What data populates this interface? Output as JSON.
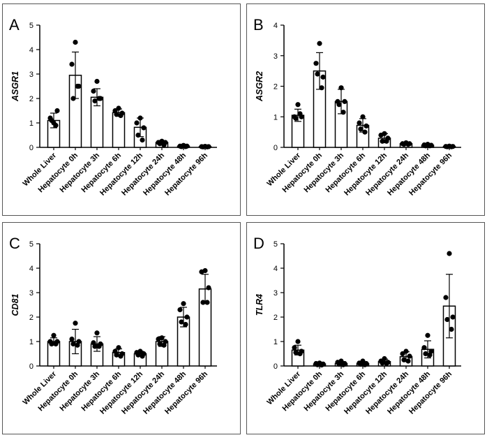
{
  "chart_data": [
    {
      "type": "bar",
      "panel_label": "A",
      "ylabel": "ASGR1",
      "ylim": [
        0,
        5
      ],
      "yticks": [
        0,
        1,
        2,
        3,
        4,
        5
      ],
      "categories": [
        "Whole Liver",
        "Hepatocyte 0h",
        "Hepatocyte 3h",
        "Hepatocyte 6h",
        "Hepatocyte 12h",
        "Hepatocyte 24h",
        "Hepatocyte 48h",
        "Hepatocyte 96h"
      ],
      "values": [
        1.1,
        2.95,
        2.05,
        1.42,
        0.82,
        0.2,
        0.05,
        0.03
      ],
      "sd": [
        0.3,
        0.95,
        0.35,
        0.15,
        0.38,
        0.08,
        0.04,
        0.02
      ],
      "points": [
        [
          1.0,
          1.2,
          1.5,
          1.1,
          0.9
        ],
        [
          4.3,
          3.4,
          2.5,
          2.0,
          2.5
        ],
        [
          2.7,
          2.3,
          2.0,
          1.9,
          2.0
        ],
        [
          1.6,
          1.5,
          1.4,
          1.35,
          1.3
        ],
        [
          1.2,
          1.0,
          0.8,
          0.5,
          0.3
        ],
        [
          0.25,
          0.2,
          0.2,
          0.15,
          0.1
        ],
        [
          0.08,
          0.05,
          0.05,
          0.03,
          0.03
        ],
        [
          0.04,
          0.03,
          0.03,
          0.02,
          0.02
        ]
      ]
    },
    {
      "type": "bar",
      "panel_label": "B",
      "ylabel": "ASGR2",
      "ylim": [
        0,
        4
      ],
      "yticks": [
        0,
        1,
        2,
        3,
        4
      ],
      "categories": [
        "Whole Liver",
        "Hepatocyte 0h",
        "Hepatocyte 3h",
        "Hepatocyte 6h",
        "Hepatocyte 12h",
        "Hepatocyte 24h",
        "Hepatocyte 48h",
        "Hepatocyte 96h"
      ],
      "values": [
        1.05,
        2.5,
        1.5,
        0.72,
        0.3,
        0.12,
        0.07,
        0.03
      ],
      "sd": [
        0.2,
        0.6,
        0.4,
        0.22,
        0.15,
        0.04,
        0.03,
        0.02
      ],
      "points": [
        [
          1.4,
          1.0,
          1.0,
          0.95,
          1.1
        ],
        [
          3.4,
          2.75,
          2.3,
          2.4,
          1.95
        ],
        [
          1.95,
          1.5,
          1.5,
          1.4,
          1.15
        ],
        [
          1.0,
          0.8,
          0.7,
          0.6,
          0.5
        ],
        [
          0.45,
          0.4,
          0.3,
          0.2,
          0.2
        ],
        [
          0.15,
          0.12,
          0.12,
          0.1,
          0.1
        ],
        [
          0.1,
          0.08,
          0.07,
          0.05,
          0.05
        ],
        [
          0.04,
          0.03,
          0.03,
          0.02,
          0.02
        ]
      ]
    },
    {
      "type": "bar",
      "panel_label": "C",
      "ylabel": "CD81",
      "ylim": [
        0,
        5
      ],
      "yticks": [
        0,
        1,
        2,
        3,
        4,
        5
      ],
      "categories": [
        "Whole Liver",
        "Hepatocyte 0h",
        "Hepatocyte 3h",
        "Hepatocyte 6h",
        "Hepatocyte 12h",
        "Hepatocyte 24h",
        "Hepatocyte 48h",
        "Hepatocyte 96h"
      ],
      "values": [
        1.0,
        1.0,
        0.9,
        0.55,
        0.5,
        1.0,
        2.0,
        3.15
      ],
      "sd": [
        0.15,
        0.5,
        0.3,
        0.15,
        0.1,
        0.2,
        0.4,
        0.6
      ],
      "points": [
        [
          1.25,
          1.0,
          1.0,
          0.9,
          0.9
        ],
        [
          1.75,
          1.1,
          1.0,
          0.9,
          0.85
        ],
        [
          1.35,
          0.95,
          0.9,
          0.8,
          0.8
        ],
        [
          0.75,
          0.6,
          0.5,
          0.45,
          0.4
        ],
        [
          0.6,
          0.55,
          0.5,
          0.45,
          0.4
        ],
        [
          1.15,
          1.1,
          1.0,
          0.9,
          0.85
        ],
        [
          2.55,
          2.3,
          2.0,
          1.8,
          1.7
        ],
        [
          3.9,
          3.85,
          3.2,
          2.6,
          2.6
        ]
      ]
    },
    {
      "type": "bar",
      "panel_label": "D",
      "ylabel": "TLR4",
      "ylim": [
        0,
        5
      ],
      "yticks": [
        0,
        1,
        2,
        3,
        4,
        5
      ],
      "categories": [
        "Whole Liver",
        "Hepatocyte 0h",
        "Hepatocyte 3h",
        "Hepatocyte 6h",
        "Hepatocyte 12h",
        "Hepatocyte 24h",
        "Hepatocyte 48h",
        "Hepatocyte 96h"
      ],
      "values": [
        0.65,
        0.08,
        0.1,
        0.1,
        0.18,
        0.38,
        0.68,
        2.45
      ],
      "sd": [
        0.2,
        0.05,
        0.08,
        0.07,
        0.1,
        0.2,
        0.35,
        1.3
      ],
      "points": [
        [
          1.0,
          0.75,
          0.6,
          0.55,
          0.5
        ],
        [
          0.12,
          0.1,
          0.08,
          0.05,
          0.04
        ],
        [
          0.2,
          0.15,
          0.1,
          0.07,
          0.05
        ],
        [
          0.2,
          0.12,
          0.1,
          0.07,
          0.05
        ],
        [
          0.3,
          0.2,
          0.15,
          0.12,
          0.1
        ],
        [
          0.6,
          0.5,
          0.4,
          0.25,
          0.2
        ],
        [
          1.25,
          0.75,
          0.6,
          0.5,
          0.45
        ],
        [
          4.6,
          2.8,
          2.0,
          1.9,
          1.5
        ]
      ]
    }
  ]
}
